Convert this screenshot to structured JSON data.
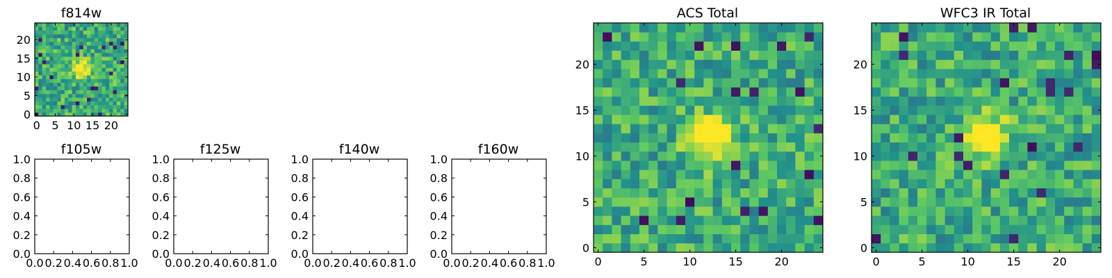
{
  "chart_data": [
    {
      "type": "heatmap",
      "title": "f814w",
      "x_ticks": [
        "0",
        "5",
        "10",
        "15",
        "20"
      ],
      "y_ticks": [
        "0",
        "5",
        "10",
        "15",
        "20"
      ],
      "xlim": [
        -0.5,
        24.5
      ],
      "ylim": [
        -0.5,
        24.5
      ],
      "grid_size": [
        25,
        25
      ],
      "colormap": "viridis",
      "bright_source_center": [
        12,
        12
      ]
    },
    {
      "type": "heatmap",
      "title": "f105w",
      "empty": true,
      "x_ticks": [
        "0.0",
        "0.2",
        "0.4",
        "0.6",
        "0.8",
        "1.0"
      ],
      "y_ticks": [
        "0.0",
        "0.2",
        "0.4",
        "0.6",
        "0.8",
        "1.0"
      ],
      "xlim": [
        0,
        1
      ],
      "ylim": [
        0,
        1
      ]
    },
    {
      "type": "heatmap",
      "title": "f125w",
      "empty": true,
      "x_ticks": [
        "0.0",
        "0.2",
        "0.4",
        "0.6",
        "0.8",
        "1.0"
      ],
      "y_ticks": [
        "0.0",
        "0.2",
        "0.4",
        "0.6",
        "0.8",
        "1.0"
      ],
      "xlim": [
        0,
        1
      ],
      "ylim": [
        0,
        1
      ]
    },
    {
      "type": "heatmap",
      "title": "f140w",
      "empty": true,
      "x_ticks": [
        "0.0",
        "0.2",
        "0.4",
        "0.6",
        "0.8",
        "1.0"
      ],
      "y_ticks": [
        "0.0",
        "0.2",
        "0.4",
        "0.6",
        "0.8",
        "1.0"
      ],
      "xlim": [
        0,
        1
      ],
      "ylim": [
        0,
        1
      ]
    },
    {
      "type": "heatmap",
      "title": "f160w",
      "empty": true,
      "x_ticks": [
        "0.0",
        "0.2",
        "0.4",
        "0.6",
        "0.8",
        "1.0"
      ],
      "y_ticks": [
        "0.0",
        "0.2",
        "0.4",
        "0.6",
        "0.8",
        "1.0"
      ],
      "xlim": [
        0,
        1
      ],
      "ylim": [
        0,
        1
      ]
    },
    {
      "type": "heatmap",
      "title": "ACS Total",
      "x_ticks": [
        "0",
        "5",
        "10",
        "15",
        "20"
      ],
      "y_ticks": [
        "0",
        "5",
        "10",
        "15",
        "20"
      ],
      "xlim": [
        -0.5,
        24.5
      ],
      "ylim": [
        -0.5,
        24.5
      ],
      "grid_size": [
        25,
        25
      ],
      "colormap": "viridis",
      "bright_source_center": [
        12,
        12
      ]
    },
    {
      "type": "heatmap",
      "title": "WFC3 IR Total",
      "x_ticks": [
        "0",
        "5",
        "10",
        "15",
        "20"
      ],
      "y_ticks": [
        "0",
        "5",
        "10",
        "15",
        "20"
      ],
      "xlim": [
        -0.5,
        24.5
      ],
      "ylim": [
        -0.5,
        24.5
      ],
      "grid_size": [
        25,
        25
      ],
      "colormap": "viridis",
      "bright_source_center": [
        12,
        12
      ]
    }
  ]
}
